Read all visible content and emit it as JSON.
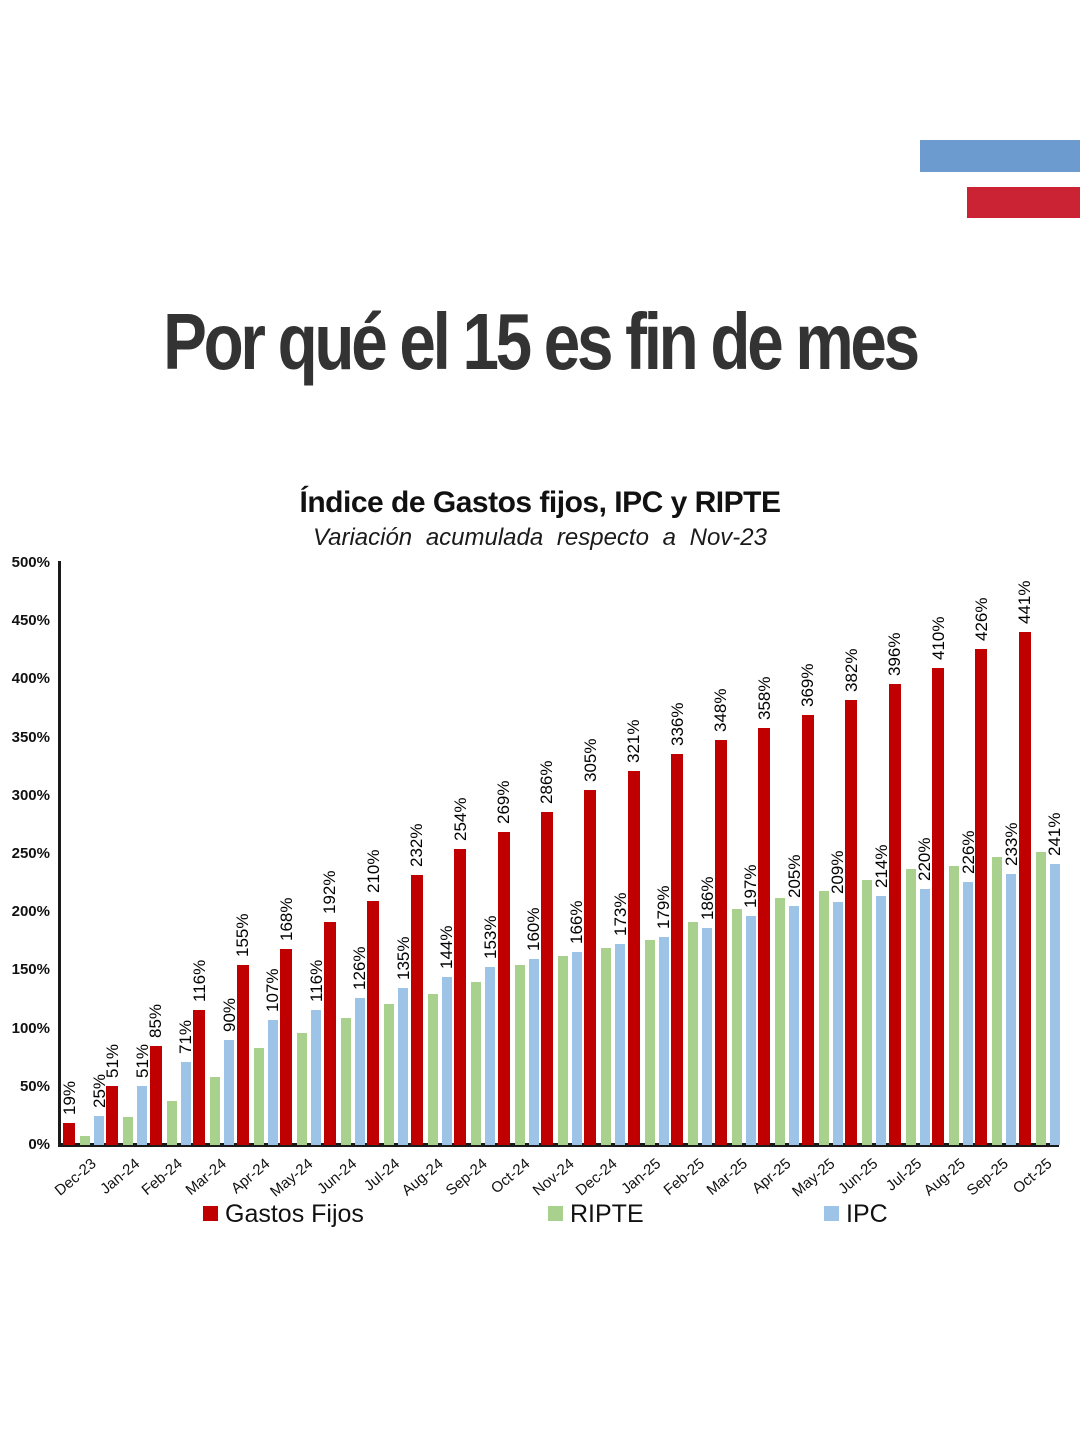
{
  "headline": {
    "text": "Por qué el 15 es fin de mes",
    "color": "#333333"
  },
  "decoration": {
    "blue_bar_color": "#6b9bcf",
    "red_bar_color": "#cb2333"
  },
  "chart_data": {
    "type": "bar",
    "title": "Índice de Gastos fijos, IPC y RIPTE",
    "subtitle": "Variación acumulada respecto a Nov-23",
    "baseline_note": "Nov-23",
    "categories": [
      "Dec-23",
      "Jan-24",
      "Feb-24",
      "Mar-24",
      "Apr-24",
      "May-24",
      "Jun-24",
      "Jul-24",
      "Aug-24",
      "Sep-24",
      "Oct-24",
      "Nov-24",
      "Dec-24",
      "Jan-25",
      "Feb-25",
      "Mar-25",
      "Apr-25",
      "May-25",
      "Jun-25",
      "Jul-25",
      "Aug-25",
      "Sep-25",
      "Oct-25"
    ],
    "series": [
      {
        "name": "Gastos Fijos",
        "color": "#c00000",
        "labels_shown": true,
        "values": [
          19,
          51,
          85,
          116,
          155,
          168,
          192,
          210,
          232,
          254,
          269,
          286,
          305,
          321,
          336,
          348,
          358,
          369,
          382,
          396,
          410,
          426,
          441
        ]
      },
      {
        "name": "RIPTE",
        "color": "#a9d18e",
        "labels_shown": false,
        "values": [
          8,
          24,
          38,
          58,
          83,
          96,
          109,
          121,
          130,
          140,
          155,
          162,
          169,
          176,
          192,
          203,
          212,
          218,
          228,
          237,
          240,
          247,
          252
        ]
      },
      {
        "name": "IPC",
        "color": "#9dc3e6",
        "labels_shown": true,
        "values": [
          25,
          51,
          71,
          90,
          107,
          116,
          126,
          135,
          144,
          153,
          160,
          166,
          173,
          179,
          186,
          197,
          205,
          209,
          214,
          220,
          226,
          233,
          241
        ]
      }
    ],
    "ylim": [
      0,
      500
    ],
    "ytick_step": 50,
    "ytick_suffix": "%",
    "value_label_suffix": "%",
    "grid": false,
    "legend_position": "bottom",
    "legend_items": [
      "Gastos Fijos",
      "RIPTE",
      "IPC"
    ]
  }
}
